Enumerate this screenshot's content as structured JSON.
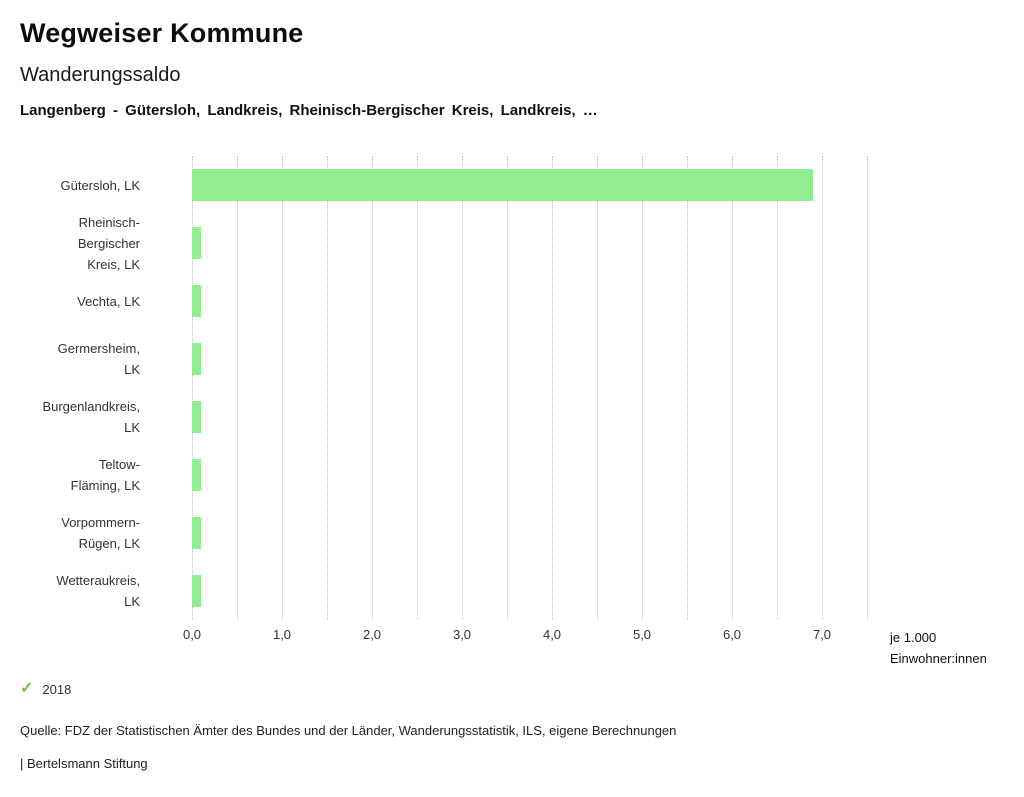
{
  "header": {
    "app_title": "Wegweiser Kommune"
  },
  "chart_data": {
    "type": "bar",
    "orientation": "horizontal",
    "title": "Wanderungssaldo",
    "subtitle": "Langenberg - Gütersloh, Landkreis, Rheinisch-Bergischer Kreis, Landkreis, …",
    "categories": [
      "Gütersloh, LK",
      "Rheinisch-Bergischer Kreis, LK",
      "Vechta, LK",
      "Germersheim, LK",
      "Burgenlandkreis, LK",
      "Teltow-Fläming, LK",
      "Vorpommern-Rügen, LK",
      "Wetteraukreis, LK"
    ],
    "category_display": [
      "Gütersloh, LK",
      "Rheinisch-\nBergischer\nKreis, LK",
      "Vechta, LK",
      "Germersheim,\nLK",
      "Burgenlandkreis,\nLK",
      "Teltow-\nFläming, LK",
      "Vorpommern-\nRügen, LK",
      "Wetteraukreis,\nLK"
    ],
    "series_name": "2018",
    "values": [
      6.9,
      0.1,
      0.1,
      0.1,
      0.1,
      0.1,
      0.1,
      0.1
    ],
    "xlim": [
      0,
      7.5
    ],
    "x_tick_labels": [
      "0,0",
      "1,0",
      "2,0",
      "3,0",
      "4,0",
      "5,0",
      "6,0",
      "7,0"
    ],
    "x_axis_unit": "je 1.000\nEinwohner:innen",
    "grid": "dotted-vertical",
    "legend_position": "bottom-left",
    "bar_color": "#90ee90",
    "legend_check_color": "#6cc24a",
    "check_glyph": "✓"
  },
  "footer": {
    "source": "Quelle: FDZ der Statistischen Ämter des Bundes und der Länder, Wanderungsstatistik, ILS, eigene Berechnungen",
    "branding": "| Bertelsmann Stiftung"
  }
}
